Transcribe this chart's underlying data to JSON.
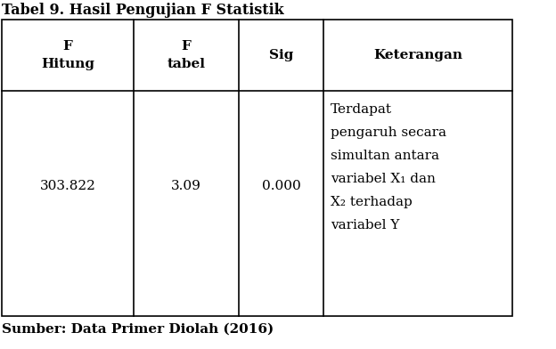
{
  "title": "Tabel 9. Hasil Pengujian F Statistik",
  "title_fontsize": 11.5,
  "title_fontweight": "bold",
  "col_headers": [
    [
      "F",
      "Hitung"
    ],
    [
      "F",
      "tabel"
    ],
    [
      "Sig"
    ],
    [
      "Keterangan"
    ]
  ],
  "col_header_fontsize": 11,
  "data_row_col1": "303.822",
  "data_row_col2": "3.09",
  "data_row_col3": "0.000",
  "data_row_col4": [
    "Terdapat",
    "pengaruh secara",
    "simultan antara",
    "variabel X₁ dan",
    "X₂ terhadap",
    "variabel Y"
  ],
  "data_fontsize": 11,
  "footer": "Sumber: Data Primer Diolah (2016)",
  "footer_fontsize": 11,
  "footer_fontweight": "bold",
  "background_color": "#ffffff",
  "text_color": "#000000",
  "line_color": "#000000",
  "border_linewidth": 1.2
}
